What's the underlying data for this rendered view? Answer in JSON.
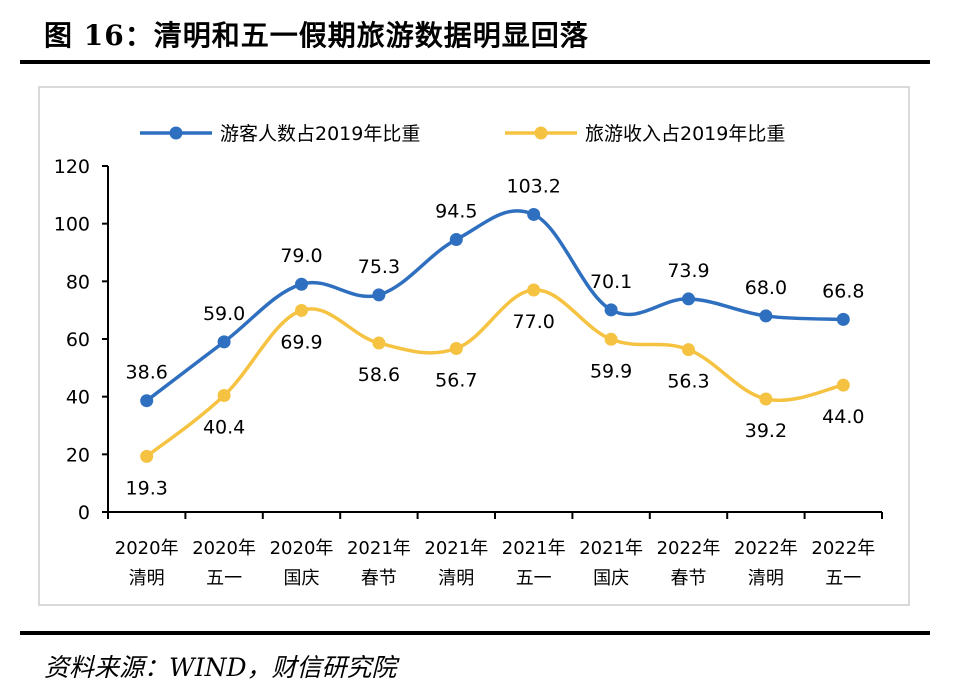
{
  "title": "图 16：清明和五一假期旅游数据明显回落",
  "source": "资料来源：WIND，财信研究院",
  "chart_data": {
    "type": "line",
    "title": "",
    "xlabel": "",
    "ylabel": "",
    "ylim": [
      0,
      120
    ],
    "yticks": [
      0,
      20,
      40,
      60,
      80,
      100,
      120
    ],
    "grid": false,
    "legend_position": "top",
    "categories": [
      [
        "2020年",
        "清明"
      ],
      [
        "2020年",
        "五一"
      ],
      [
        "2020年",
        "国庆"
      ],
      [
        "2021年",
        "春节"
      ],
      [
        "2021年",
        "清明"
      ],
      [
        "2021年",
        "五一"
      ],
      [
        "2021年",
        "国庆"
      ],
      [
        "2022年",
        "春节"
      ],
      [
        "2022年",
        "清明"
      ],
      [
        "2022年",
        "五一"
      ]
    ],
    "series": [
      {
        "name": "游客人数占2019年比重",
        "color": "#2f6fbf",
        "values": [
          38.6,
          59.0,
          79.0,
          75.3,
          94.5,
          103.2,
          70.1,
          73.9,
          68.0,
          66.8
        ],
        "labels": [
          "38.6",
          "59.0",
          "79.0",
          "75.3",
          "94.5",
          "103.2",
          "70.1",
          "73.9",
          "68.0",
          "66.8"
        ],
        "label_position": "above"
      },
      {
        "name": "旅游收入占2019年比重",
        "color": "#f5c242",
        "values": [
          19.3,
          40.4,
          69.9,
          58.6,
          56.7,
          77.0,
          59.9,
          56.3,
          39.2,
          44.0
        ],
        "labels": [
          "19.3",
          "40.4",
          "69.9",
          "58.6",
          "56.7",
          "77.0",
          "59.9",
          "56.3",
          "39.2",
          "44.0"
        ],
        "label_position": "below"
      }
    ]
  }
}
